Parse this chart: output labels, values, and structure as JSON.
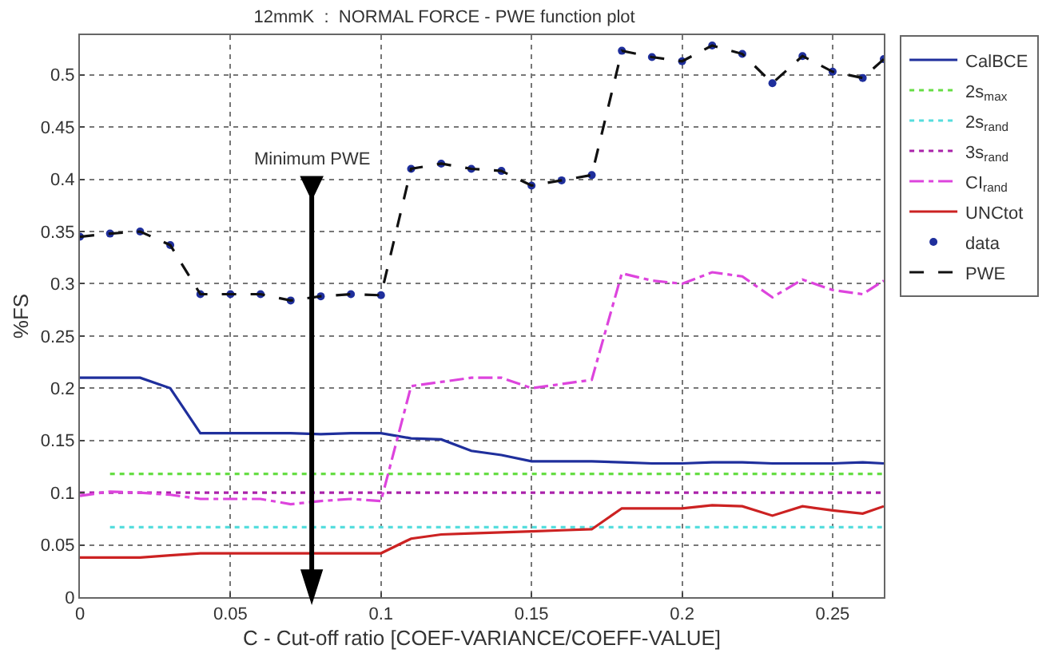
{
  "chart_data": {
    "type": "line",
    "title": "12mmK  :  NORMAL FORCE - PWE function plot",
    "xlabel": "C - Cut-off ratio [COEF-VARIANCE/COEFF-VALUE]",
    "ylabel": "%FS",
    "x": [
      0,
      0.01,
      0.02,
      0.03,
      0.04,
      0.05,
      0.06,
      0.07,
      0.08,
      0.09,
      0.1,
      0.11,
      0.12,
      0.13,
      0.14,
      0.15,
      0.16,
      0.17,
      0.18,
      0.19,
      0.2,
      0.21,
      0.22,
      0.23,
      0.24,
      0.25,
      0.26,
      0.267
    ],
    "series": [
      {
        "name": "CalBCE",
        "color": "#1f2f9c",
        "line_style": "solid",
        "values": [
          0.21,
          0.21,
          0.21,
          0.2,
          0.157,
          0.157,
          0.157,
          0.157,
          0.156,
          0.157,
          0.157,
          0.152,
          0.151,
          0.14,
          0.136,
          0.13,
          0.13,
          0.13,
          0.129,
          0.128,
          0.128,
          0.129,
          0.129,
          0.128,
          0.128,
          0.128,
          0.129,
          0.128
        ]
      },
      {
        "name": "2s$_{max}$",
        "color": "#66dd44",
        "line_style": "dotted",
        "x": [
          0.01,
          0.267
        ],
        "values": [
          0.118,
          0.118
        ]
      },
      {
        "name": "2s$_{rand}$",
        "color": "#55dddd",
        "line_style": "dotted",
        "x": [
          0.01,
          0.267
        ],
        "values": [
          0.067,
          0.067
        ]
      },
      {
        "name": "3s$_{rand}$",
        "color": "#aa22aa",
        "line_style": "dotted",
        "x": [
          0,
          0.267
        ],
        "values": [
          0.1,
          0.1
        ]
      },
      {
        "name": "CI$_{rand}$",
        "color": "#dd44dd",
        "line_style": "dashdot",
        "values": [
          0.097,
          0.101,
          0.1,
          0.098,
          0.094,
          0.094,
          0.094,
          0.089,
          0.092,
          0.094,
          0.092,
          0.202,
          0.206,
          0.21,
          0.21,
          0.2,
          0.204,
          0.208,
          0.31,
          0.303,
          0.3,
          0.311,
          0.307,
          0.287,
          0.304,
          0.294,
          0.29,
          0.303
        ]
      },
      {
        "name": "UNCtot",
        "color": "#cc2222",
        "line_style": "solid",
        "values": [
          0.038,
          0.038,
          0.038,
          0.04,
          0.042,
          0.042,
          0.042,
          0.042,
          0.042,
          0.042,
          0.042,
          0.056,
          0.06,
          0.061,
          0.062,
          0.063,
          0.064,
          0.065,
          0.085,
          0.085,
          0.085,
          0.088,
          0.087,
          0.078,
          0.087,
          0.083,
          0.08,
          0.087
        ]
      },
      {
        "name": "data",
        "type": "scatter",
        "marker": "circle",
        "color": "#1f2f9c",
        "values": [
          0.345,
          0.348,
          0.35,
          0.337,
          0.29,
          0.29,
          0.29,
          0.284,
          0.288,
          0.29,
          0.289,
          0.41,
          0.415,
          0.41,
          0.408,
          0.394,
          0.399,
          0.404,
          0.523,
          0.517,
          0.513,
          0.528,
          0.52,
          0.492,
          0.518,
          0.503,
          0.497,
          0.515
        ]
      },
      {
        "name": "PWE",
        "color": "#111111",
        "line_style": "dashed",
        "values": [
          0.345,
          0.348,
          0.35,
          0.337,
          0.29,
          0.29,
          0.29,
          0.284,
          0.288,
          0.29,
          0.289,
          0.41,
          0.415,
          0.41,
          0.408,
          0.394,
          0.399,
          0.404,
          0.523,
          0.517,
          0.513,
          0.528,
          0.52,
          0.492,
          0.518,
          0.503,
          0.497,
          0.515
        ]
      }
    ],
    "ref_lines": [
      {
        "axis": "x",
        "value": 0.077,
        "label": "Minimum PWE",
        "color": "#000000"
      }
    ],
    "xlim": [
      0,
      0.267
    ],
    "xticks": [
      0,
      0.05,
      0.1,
      0.15,
      0.2,
      0.25
    ],
    "ylim": [
      0,
      0.538
    ],
    "yticks": [
      0,
      0.05,
      0.1,
      0.15,
      0.2,
      0.25,
      0.3,
      0.35,
      0.4,
      0.45,
      0.5
    ],
    "grid": true,
    "legend": "top right"
  }
}
